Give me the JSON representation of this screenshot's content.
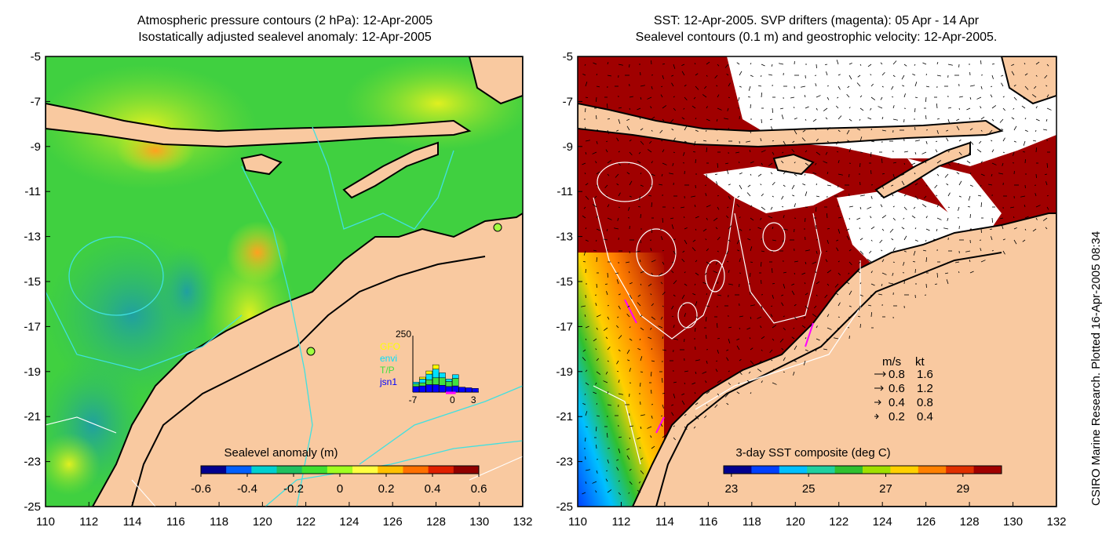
{
  "left_panel": {
    "title_line1": "Atmospheric pressure contours (2 hPa): 12-Apr-2005",
    "title_line2": "Isostatically adjusted sealevel anomaly: 12-Apr-2005",
    "colorbar": {
      "label": "Sealevel anomaly (m)",
      "ticks": [
        "-0.6",
        "-0.4",
        "-0.2",
        "0",
        "0.2",
        "0.4",
        "0.6"
      ],
      "range": [
        -0.6,
        0.6
      ],
      "colors": [
        "#00008f",
        "#0060ff",
        "#00d0d0",
        "#20c060",
        "#40e030",
        "#a0ff20",
        "#ffff40",
        "#ffc000",
        "#ff7000",
        "#e02000",
        "#900000"
      ]
    },
    "inset": {
      "max_label": "250",
      "x_ticks": [
        "-7",
        "0",
        "3"
      ],
      "legend": [
        {
          "name": "GFO",
          "color": "#ffff00"
        },
        {
          "name": "envi",
          "color": "#00e0ff"
        },
        {
          "name": "T/P",
          "color": "#40e040"
        },
        {
          "name": "jsn1",
          "color": "#0000ff"
        }
      ],
      "counts": {
        "jsn1": [
          45,
          50,
          60,
          60,
          55,
          45,
          50,
          40,
          35,
          30
        ],
        "tp": [
          20,
          25,
          40,
          55,
          60,
          40,
          60,
          0,
          0,
          0
        ],
        "envi": [
          15,
          30,
          45,
          70,
          40,
          20,
          30,
          0,
          0,
          0
        ],
        "gfo": [
          0,
          15,
          25,
          35,
          0,
          0,
          0,
          0,
          0,
          0
        ]
      }
    }
  },
  "right_panel": {
    "title_line1": "SST: 12-Apr-2005. SVP drifters (magenta): 05 Apr - 14 Apr",
    "title_line2": "Sealevel contours (0.1 m) and geostrophic velocity: 12-Apr-2005.",
    "colorbar": {
      "label": "3-day SST composite (deg C)",
      "ticks": [
        "23",
        "25",
        "27",
        "29"
      ],
      "range": [
        22.8,
        30.0
      ],
      "colors": [
        "#00008f",
        "#0040ff",
        "#00c0ff",
        "#20d0a0",
        "#30c030",
        "#a0e000",
        "#ffd000",
        "#ff8000",
        "#e03000",
        "#a00000"
      ]
    },
    "speed_legend": {
      "header_ms": "m/s",
      "header_kt": "kt",
      "rows": [
        {
          "ms": "0.8",
          "kt": "1.6"
        },
        {
          "ms": "0.6",
          "kt": "1.2"
        },
        {
          "ms": "0.4",
          "kt": "0.8"
        },
        {
          "ms": "0.2",
          "kt": "0.4"
        }
      ]
    }
  },
  "axes": {
    "lat_ticks": [
      "-5",
      "-7",
      "-9",
      "-11",
      "-13",
      "-15",
      "-17",
      "-19",
      "-21",
      "-23",
      "-25"
    ],
    "lon_ticks": [
      "110",
      "112",
      "114",
      "116",
      "118",
      "120",
      "122",
      "124",
      "126",
      "128",
      "130",
      "132"
    ],
    "lat_range": [
      -25,
      -5
    ],
    "lon_range": [
      110,
      132
    ]
  },
  "credit": "CSIRO Marine Research. Plotted 16-Apr-2005 08:34",
  "colors": {
    "land": "#f9c9a0",
    "sea_green": "#30d030",
    "sst_dark_red": "#a00000",
    "cloud": "#ffffff",
    "contour_cyan": "#40e0e0"
  }
}
